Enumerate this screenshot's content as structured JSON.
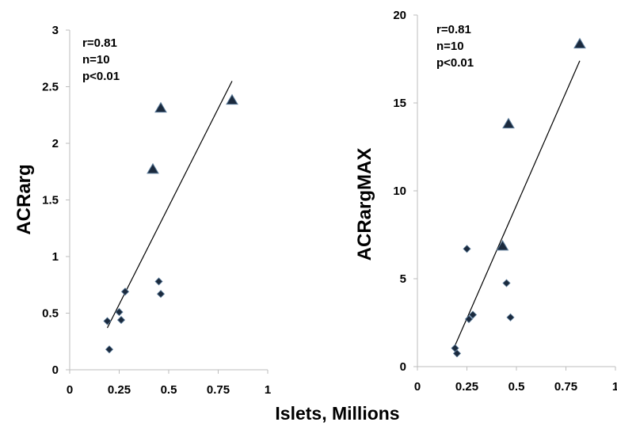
{
  "shared_xlabel": "Islets, Millions",
  "chart_data": [
    {
      "type": "scatter",
      "ylabel": "ACRarg",
      "xlabel": "",
      "xlim": [
        0,
        1
      ],
      "ylim": [
        0,
        3
      ],
      "x_ticks": [
        "0",
        "0.25",
        "0.5",
        "0.75",
        "1"
      ],
      "y_ticks": [
        "0",
        "0.5",
        "1",
        "1.5",
        "2",
        "2.5",
        "3"
      ],
      "stats": [
        "r=0.81",
        "n=10",
        "p<0.01"
      ],
      "trendline": {
        "x": [
          0.19,
          0.82
        ],
        "y": [
          0.37,
          2.55
        ]
      },
      "series": [
        {
          "marker": "diamond",
          "color": "#1b2a3d",
          "points": [
            [
              0.19,
              0.43
            ],
            [
              0.2,
              0.18
            ],
            [
              0.25,
              0.51
            ],
            [
              0.26,
              0.44
            ],
            [
              0.28,
              0.69
            ],
            [
              0.45,
              0.78
            ],
            [
              0.46,
              0.67
            ]
          ]
        },
        {
          "marker": "triangle",
          "color": "#1b2a3d",
          "points": [
            [
              0.42,
              1.77
            ],
            [
              0.46,
              2.31
            ],
            [
              0.82,
              2.38
            ]
          ]
        }
      ]
    },
    {
      "type": "scatter",
      "ylabel": "ACRargMAX",
      "xlabel": "",
      "xlim": [
        0,
        1
      ],
      "ylim": [
        0,
        20
      ],
      "x_ticks": [
        "0",
        "0.25",
        "0.5",
        "0.75",
        "1"
      ],
      "y_ticks": [
        "0",
        "5",
        "10",
        "15",
        "20"
      ],
      "stats": [
        "r=0.81",
        "n=10",
        "p<0.01"
      ],
      "trendline": {
        "x": [
          0.19,
          0.82
        ],
        "y": [
          1.2,
          17.4
        ]
      },
      "series": [
        {
          "marker": "diamond",
          "color": "#1b2a3d",
          "points": [
            [
              0.19,
              1.05
            ],
            [
              0.2,
              0.75
            ],
            [
              0.25,
              6.7
            ],
            [
              0.26,
              2.7
            ],
            [
              0.28,
              2.95
            ],
            [
              0.45,
              4.75
            ],
            [
              0.47,
              2.8
            ]
          ]
        },
        {
          "marker": "triangle",
          "color": "#1b2a3d",
          "points": [
            [
              0.43,
              6.85
            ],
            [
              0.46,
              13.8
            ],
            [
              0.82,
              18.35
            ]
          ]
        }
      ]
    }
  ]
}
